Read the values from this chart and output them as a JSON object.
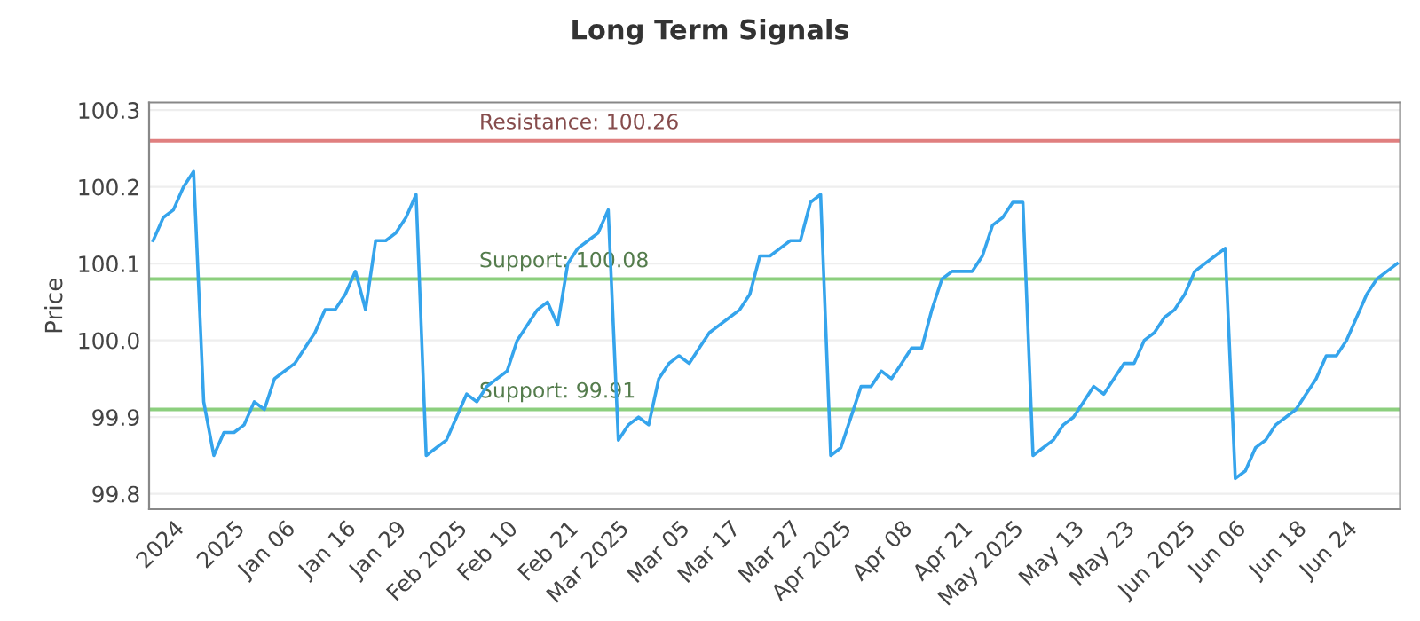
{
  "chart_data": {
    "type": "line",
    "title": "Long Term Signals",
    "ylabel": "Price",
    "categories": [
      null,
      null,
      "2024",
      null,
      null,
      null,
      null,
      null,
      "2025",
      null,
      null,
      null,
      null,
      "Jan 06",
      null,
      null,
      null,
      null,
      null,
      "Jan 16",
      null,
      null,
      null,
      null,
      "Jan 29",
      null,
      null,
      null,
      null,
      null,
      "Feb 2025",
      null,
      null,
      null,
      null,
      "Feb 10",
      null,
      null,
      null,
      null,
      null,
      "Feb 21",
      null,
      null,
      null,
      null,
      "Mar 2025",
      null,
      null,
      null,
      null,
      null,
      "Mar 05",
      null,
      null,
      null,
      null,
      "Mar 17",
      null,
      null,
      null,
      null,
      null,
      "Mar 27",
      null,
      null,
      null,
      null,
      "Apr 2025",
      null,
      null,
      null,
      null,
      null,
      "Apr 08",
      null,
      null,
      null,
      null,
      null,
      "Apr 21",
      null,
      null,
      null,
      null,
      "May 2025",
      null,
      null,
      null,
      null,
      null,
      "May 13",
      null,
      null,
      null,
      null,
      "May 23",
      null,
      null,
      null,
      null,
      null,
      "Jun 2025",
      null,
      null,
      null,
      null,
      "Jun 06",
      null,
      null,
      null,
      null,
      null,
      "Jun 18",
      null,
      null,
      null,
      null,
      "Jun 24",
      null,
      null,
      null,
      null,
      null
    ],
    "series": [
      {
        "color": "#35a4ec",
        "values": [
          100.13,
          100.16,
          100.17,
          100.2,
          100.22,
          99.92,
          99.85,
          99.88,
          99.88,
          99.89,
          99.92,
          99.91,
          99.95,
          99.96,
          99.97,
          99.99,
          100.01,
          100.04,
          100.04,
          100.06,
          100.09,
          100.04,
          100.13,
          100.13,
          100.14,
          100.16,
          100.19,
          99.85,
          99.86,
          99.87,
          99.9,
          99.93,
          99.92,
          99.94,
          99.95,
          99.96,
          100.0,
          100.02,
          100.04,
          100.05,
          100.02,
          100.1,
          100.12,
          100.13,
          100.14,
          100.17,
          99.87,
          99.89,
          99.9,
          99.89,
          99.95,
          99.97,
          99.98,
          99.97,
          99.99,
          100.01,
          100.02,
          100.03,
          100.04,
          100.06,
          100.11,
          100.11,
          100.12,
          100.13,
          100.13,
          100.18,
          100.19,
          99.85,
          99.86,
          99.9,
          99.94,
          99.94,
          99.96,
          99.95,
          99.97,
          99.99,
          99.99,
          100.04,
          100.08,
          100.09,
          100.09,
          100.09,
          100.11,
          100.15,
          100.16,
          100.18,
          100.18,
          99.85,
          99.86,
          99.87,
          99.89,
          99.9,
          99.92,
          99.94,
          99.93,
          99.95,
          99.97,
          99.97,
          100.0,
          100.01,
          100.03,
          100.04,
          100.06,
          100.09,
          100.1,
          100.11,
          100.12,
          99.82,
          99.83,
          99.86,
          99.87,
          99.89,
          99.9,
          99.91,
          99.93,
          99.95,
          99.98,
          99.98,
          100.0,
          100.03,
          100.06,
          100.08,
          100.09,
          100.1
        ]
      }
    ],
    "ylim": [
      99.78,
      100.31
    ],
    "yticks": [
      99.8,
      99.9,
      {
        "value": 100.0,
        "label": "100.0"
      },
      100.1,
      100.2,
      100.3
    ],
    "grid": "y",
    "marker": "none",
    "line_style": "solid",
    "ref_lines": [
      {
        "axis": "y",
        "value": 100.26,
        "label": "Resistance: 100.26",
        "color": "#e07f7f"
      },
      {
        "axis": "y",
        "value": 100.08,
        "label": "Support: 100.08",
        "color": "#8ccf7e"
      },
      {
        "axis": "y",
        "value": 99.91,
        "label": "Support: 99.91",
        "color": "#8ccf7e"
      }
    ]
  }
}
